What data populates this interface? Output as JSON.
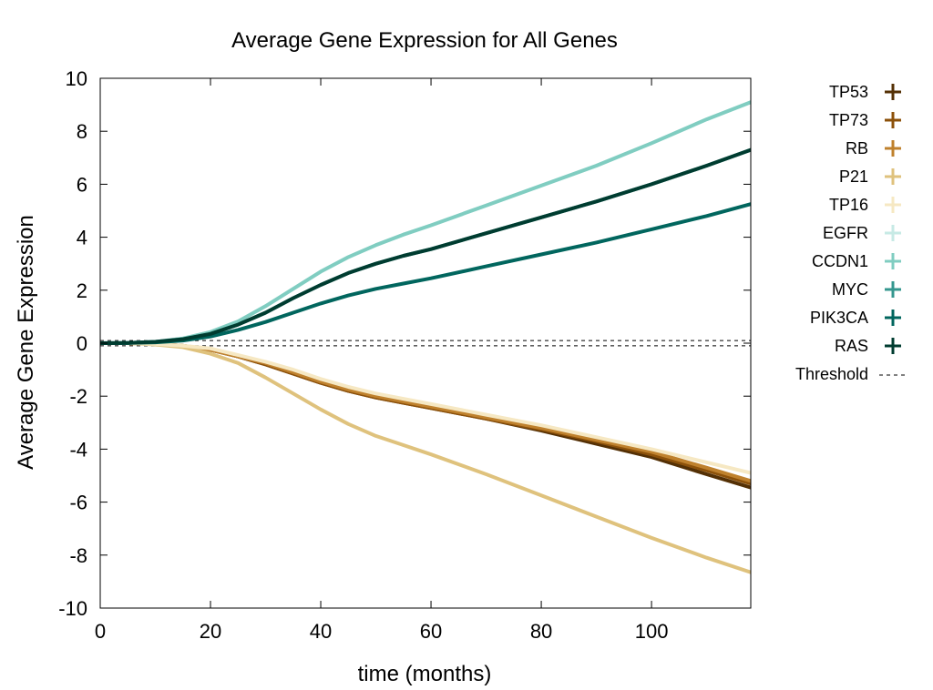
{
  "chart_data": {
    "type": "line",
    "title": "Average Gene Expression for All Genes",
    "xlabel": "time (months)",
    "ylabel": "Average Gene Expression",
    "xlim": [
      0,
      118
    ],
    "ylim": [
      -10,
      10
    ],
    "xticks": [
      0,
      20,
      40,
      60,
      80,
      100
    ],
    "yticks": [
      -10,
      -8,
      -6,
      -4,
      -2,
      0,
      2,
      4,
      6,
      8,
      10
    ],
    "grid": false,
    "legend_position": "right",
    "x": [
      0,
      5,
      10,
      15,
      20,
      25,
      30,
      35,
      40,
      45,
      50,
      55,
      60,
      70,
      80,
      90,
      100,
      110,
      118
    ],
    "series": [
      {
        "name": "TP53",
        "color": "#543005",
        "values": [
          0,
          0,
          -0.03,
          -0.1,
          -0.25,
          -0.5,
          -0.8,
          -1.15,
          -1.5,
          -1.8,
          -2.05,
          -2.25,
          -2.45,
          -2.85,
          -3.3,
          -3.8,
          -4.3,
          -4.95,
          -5.45
        ]
      },
      {
        "name": "TP73",
        "color": "#8c510a",
        "values": [
          0,
          0,
          -0.03,
          -0.1,
          -0.25,
          -0.5,
          -0.8,
          -1.15,
          -1.5,
          -1.8,
          -2.05,
          -2.25,
          -2.45,
          -2.85,
          -3.25,
          -3.7,
          -4.2,
          -4.8,
          -5.3
        ]
      },
      {
        "name": "RB",
        "color": "#bf812d",
        "values": [
          0,
          0,
          -0.03,
          -0.1,
          -0.25,
          -0.5,
          -0.75,
          -1.1,
          -1.45,
          -1.75,
          -2.0,
          -2.2,
          -2.4,
          -2.8,
          -3.2,
          -3.65,
          -4.1,
          -4.7,
          -5.2
        ]
      },
      {
        "name": "P21",
        "color": "#dfc27d",
        "values": [
          0,
          0,
          -0.05,
          -0.15,
          -0.4,
          -0.75,
          -1.3,
          -1.9,
          -2.5,
          -3.05,
          -3.5,
          -3.85,
          -4.2,
          -4.95,
          -5.75,
          -6.55,
          -7.35,
          -8.1,
          -8.65
        ]
      },
      {
        "name": "TP16",
        "color": "#f6e8c3",
        "values": [
          0,
          0,
          -0.03,
          -0.1,
          -0.2,
          -0.45,
          -0.7,
          -1.0,
          -1.35,
          -1.65,
          -1.9,
          -2.1,
          -2.3,
          -2.7,
          -3.1,
          -3.55,
          -4.0,
          -4.5,
          -4.9
        ]
      },
      {
        "name": "EGFR",
        "color": "#c7eae5",
        "values": [
          0,
          0.01,
          0.05,
          0.18,
          0.42,
          0.82,
          1.4,
          2.05,
          2.7,
          3.25,
          3.7,
          4.1,
          4.45,
          5.2,
          5.95,
          6.7,
          7.55,
          8.45,
          9.1
        ]
      },
      {
        "name": "CCDN1",
        "color": "#80cdc1",
        "values": [
          0,
          0.01,
          0.05,
          0.18,
          0.42,
          0.82,
          1.4,
          2.05,
          2.7,
          3.25,
          3.7,
          4.1,
          4.45,
          5.2,
          5.95,
          6.7,
          7.55,
          8.45,
          9.1
        ]
      },
      {
        "name": "MYC",
        "color": "#35978f",
        "values": [
          0,
          0.01,
          0.05,
          0.15,
          0.35,
          0.7,
          1.15,
          1.7,
          2.2,
          2.65,
          3.0,
          3.3,
          3.55,
          4.15,
          4.75,
          5.35,
          6.0,
          6.7,
          7.3
        ]
      },
      {
        "name": "PIK3CA",
        "color": "#01665e",
        "values": [
          0,
          0.01,
          0.03,
          0.1,
          0.25,
          0.5,
          0.8,
          1.15,
          1.5,
          1.8,
          2.05,
          2.25,
          2.45,
          2.9,
          3.35,
          3.8,
          4.3,
          4.8,
          5.25
        ]
      },
      {
        "name": "RAS",
        "color": "#003c30",
        "values": [
          0,
          0.01,
          0.05,
          0.15,
          0.35,
          0.7,
          1.15,
          1.7,
          2.2,
          2.65,
          3.0,
          3.3,
          3.55,
          4.15,
          4.75,
          5.35,
          6.0,
          6.7,
          7.3
        ]
      }
    ],
    "threshold": {
      "name": "Threshold",
      "values": [
        0.1,
        -0.1
      ],
      "color": "#000000",
      "style": "dashed"
    }
  }
}
